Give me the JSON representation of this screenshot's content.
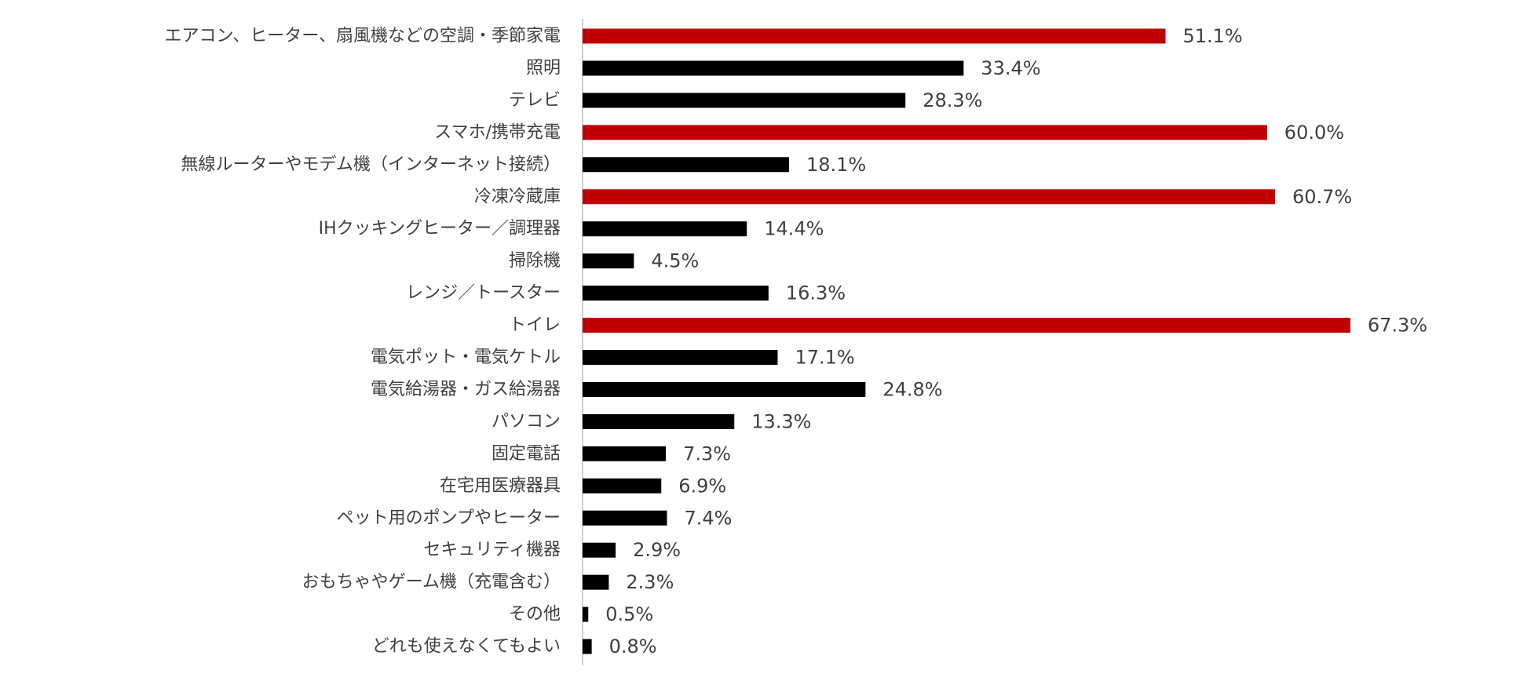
{
  "chart_data": {
    "type": "bar",
    "orientation": "horizontal",
    "title": "",
    "xlabel": "",
    "ylabel": "",
    "grid": false,
    "legend": "none",
    "value_suffix": "%",
    "xlim": [
      0,
      100
    ],
    "categories": [
      "エアコン、ヒーター、扇風機などの空調・季節家電",
      "照明",
      "テレビ",
      "スマホ/携帯充電",
      "無線ルーターやモデム機（インターネット接続）",
      "冷凍冷蔵庫",
      "IHクッキングヒーター／調理器",
      "掃除機",
      "レンジ／トースター",
      "トイレ",
      "電気ポット・電気ケトル",
      "電気給湯器・ガス給湯器",
      "パソコン",
      "固定電話",
      "在宅用医療器具",
      "ペット用のポンプやヒーター",
      "セキュリティ機器",
      "おもちゃやゲーム機（充電含む）",
      "その他",
      "どれも使えなくてもよい"
    ],
    "values": [
      51.1,
      33.4,
      28.3,
      60.0,
      18.1,
      60.7,
      14.4,
      4.5,
      16.3,
      67.3,
      17.1,
      24.8,
      13.3,
      7.3,
      6.9,
      7.4,
      2.9,
      2.3,
      0.5,
      0.8
    ],
    "value_labels": [
      "51.1%",
      "33.4%",
      "28.3%",
      "60.0%",
      "18.1%",
      "60.7%",
      "14.4%",
      "4.5%",
      "16.3%",
      "67.3%",
      "17.1%",
      "24.8%",
      "13.3%",
      "7.3%",
      "6.9%",
      "7.4%",
      "2.9%",
      "2.3%",
      "0.5%",
      "0.8%"
    ],
    "highlighted": [
      true,
      false,
      false,
      true,
      false,
      true,
      false,
      false,
      false,
      true,
      false,
      false,
      false,
      false,
      false,
      false,
      false,
      false,
      false,
      false
    ]
  },
  "colors": {
    "highlight_bar": "#c00000",
    "default_bar": "#000000",
    "axis_line": "#bfbfbf",
    "text": "#404040"
  }
}
